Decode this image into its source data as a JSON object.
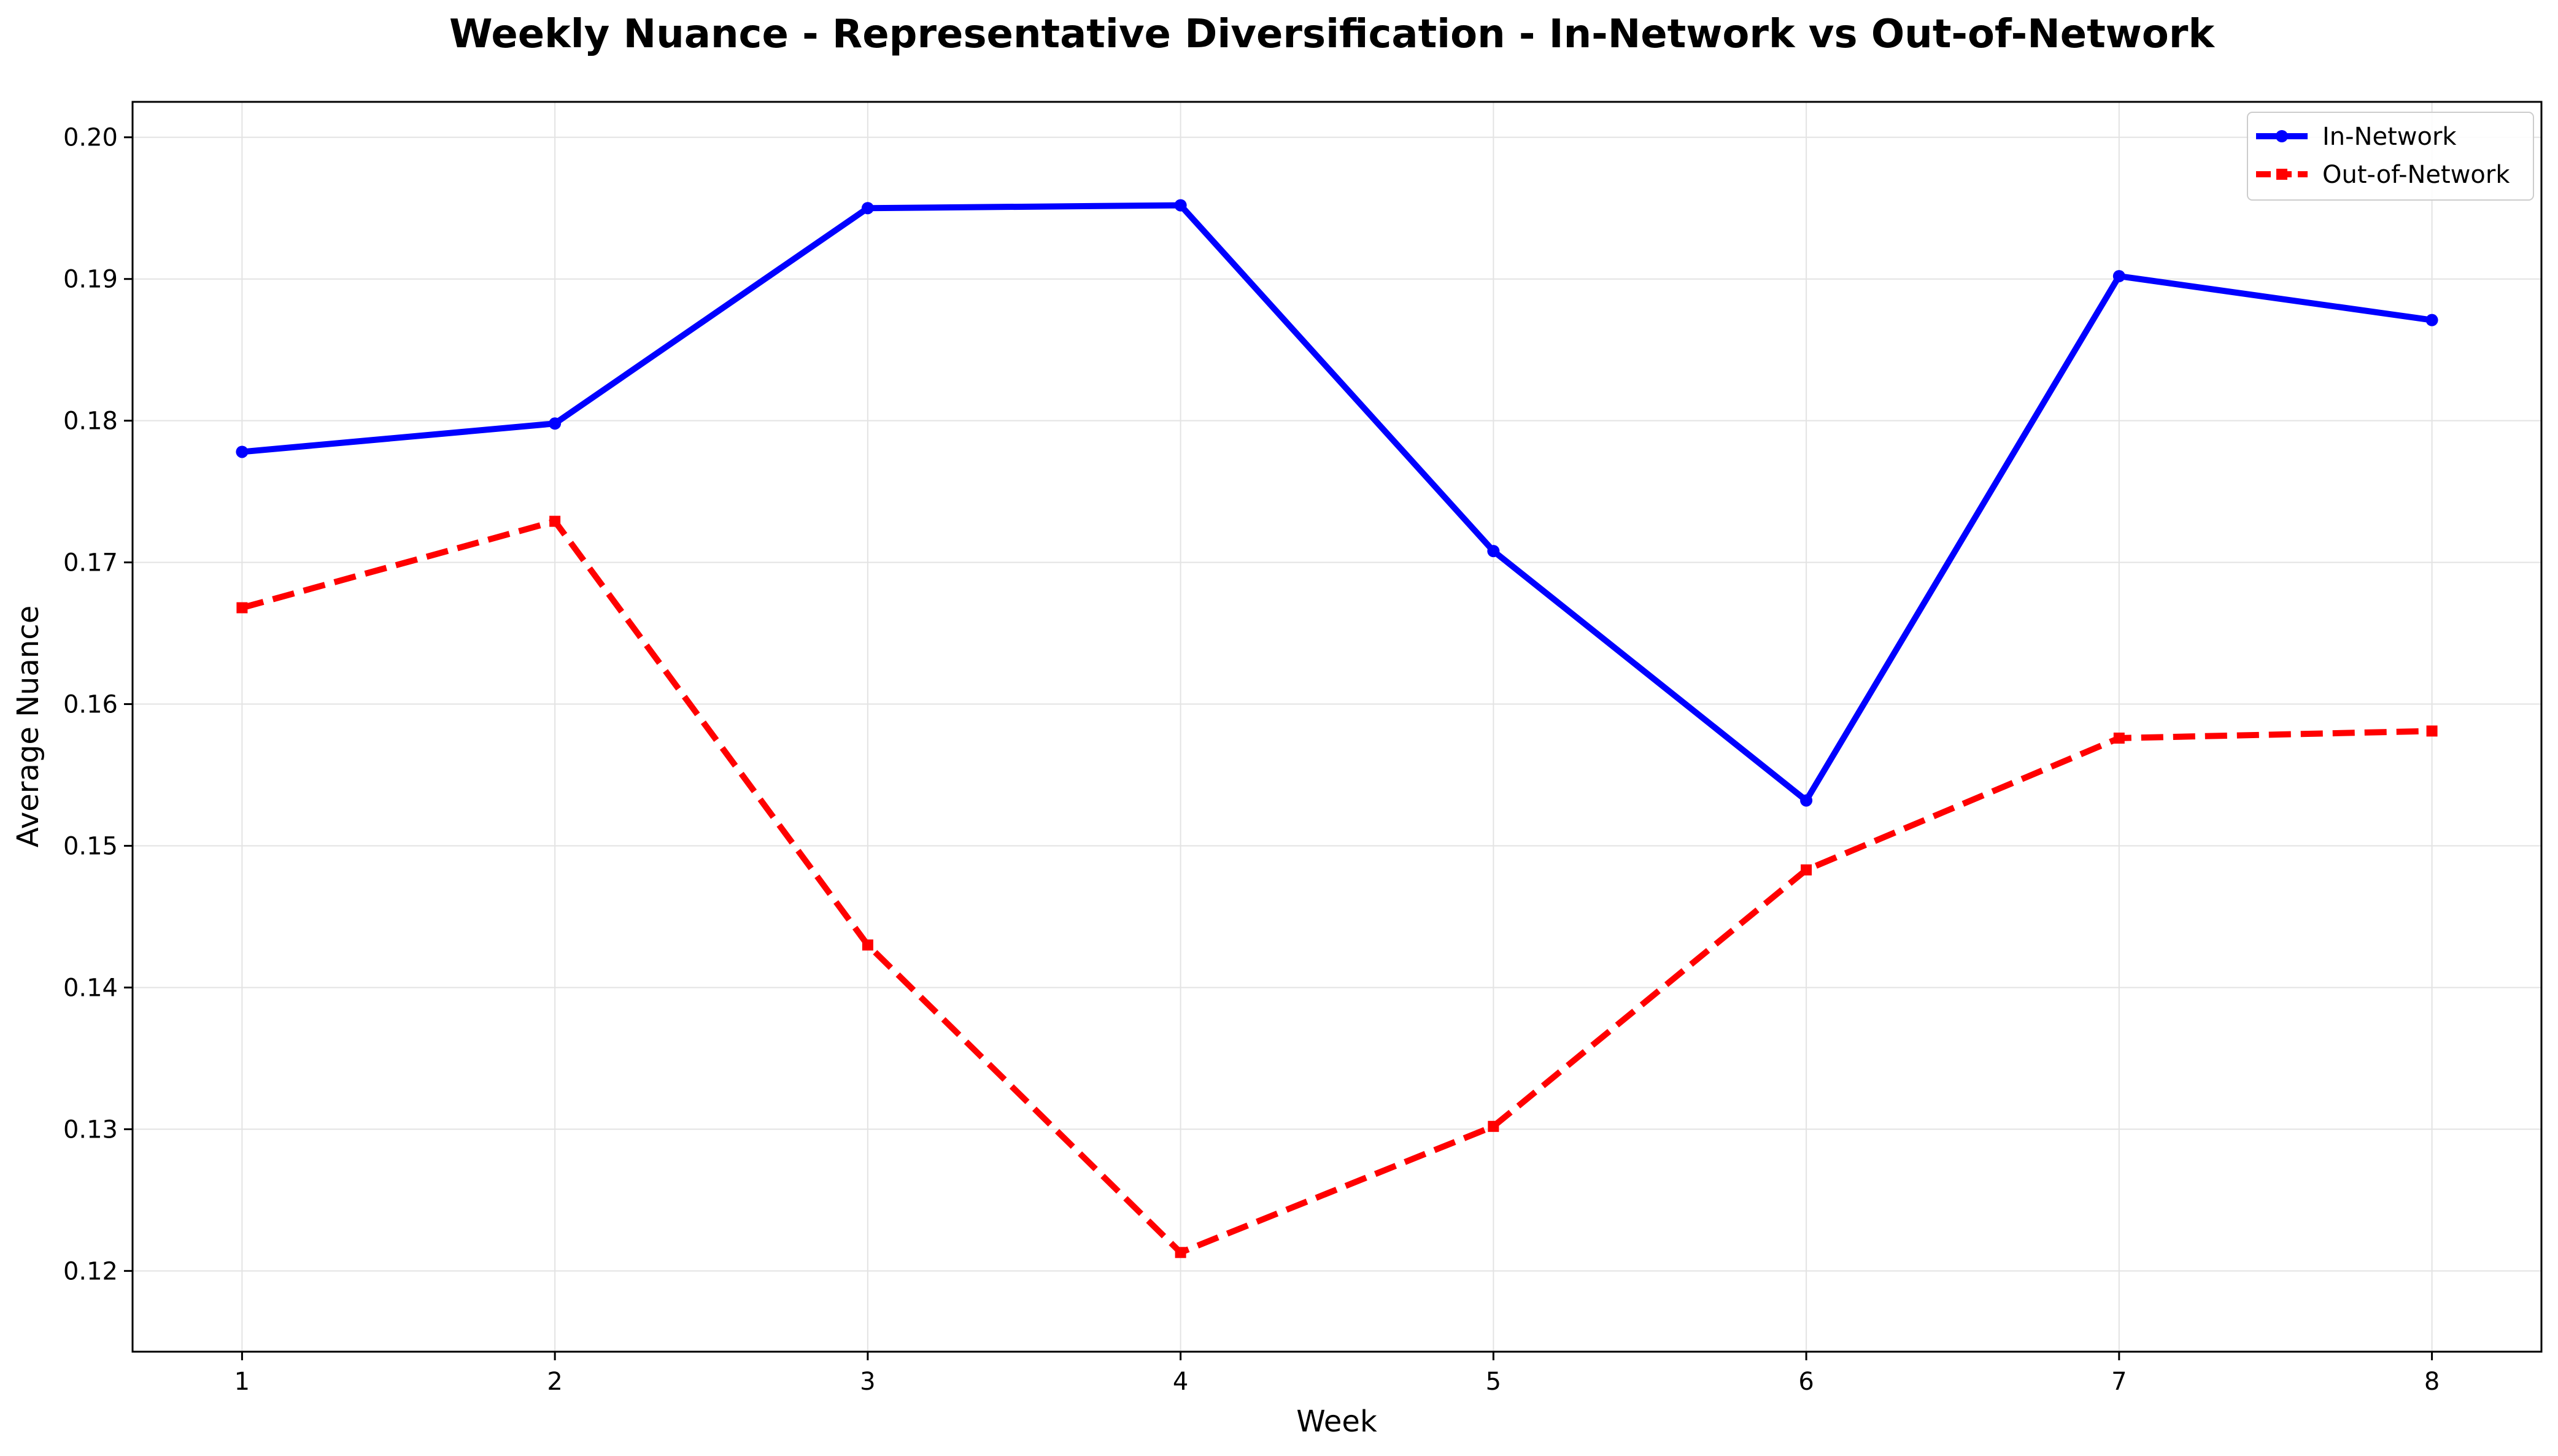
{
  "chart_data": {
    "type": "line",
    "title": "Weekly Nuance - Representative Diversification - In-Network vs Out-of-Network",
    "xlabel": "Week",
    "ylabel": "Average Nuance",
    "x": [
      1,
      2,
      3,
      4,
      5,
      6,
      7,
      8
    ],
    "xticks": [
      "1",
      "2",
      "3",
      "4",
      "5",
      "6",
      "7",
      "8"
    ],
    "yticks": [
      "0.12",
      "0.13",
      "0.14",
      "0.15",
      "0.16",
      "0.17",
      "0.18",
      "0.19",
      "0.20"
    ],
    "xlim": [
      0.65,
      8.35
    ],
    "ylim": [
      0.1143,
      0.2025
    ],
    "grid": true,
    "legend_position": "upper-right",
    "series": [
      {
        "name": "In-Network",
        "color": "#0000ff",
        "line_style": "solid",
        "marker": "circle",
        "values": [
          0.1778,
          0.1798,
          0.195,
          0.1952,
          0.1708,
          0.1532,
          0.1902,
          0.1871
        ]
      },
      {
        "name": "Out-of-Network",
        "color": "#ff0000",
        "line_style": "dashed",
        "marker": "square",
        "values": [
          0.1668,
          0.1729,
          0.143,
          0.1213,
          0.1302,
          0.1483,
          0.1576,
          0.1581
        ]
      }
    ]
  }
}
